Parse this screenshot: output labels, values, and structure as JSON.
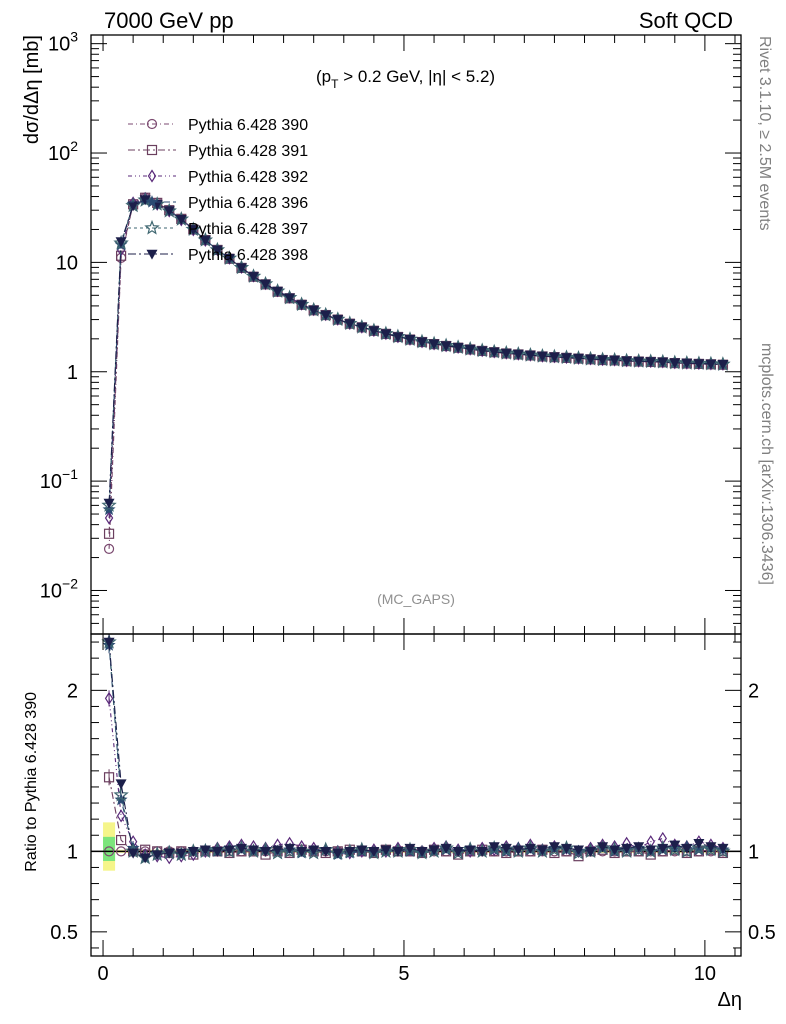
{
  "header": {
    "left_title": "7000 GeV pp",
    "right_title": "Soft QCD"
  },
  "side_labels": {
    "rivet": "Rivet 3.1.10, ≥ 2.5M events",
    "source": "mcplots.cern.ch [arXiv:1306.3436]"
  },
  "chart_data": [
    {
      "type": "line",
      "panel": "main",
      "annotation": "(p_T > 0.2 GeV, |η| < 5.2)",
      "annotation_parts": {
        "open": "(p",
        "sub": "T",
        "rest": " > 0.2 GeV, |η| < 5.2)"
      },
      "watermark": "(MC_GAPS)",
      "ylabel": "dσ/dΔη [mb]",
      "yscale": "log",
      "ylim": [
        0.004,
        1200
      ],
      "xlim": [
        -0.2,
        10.6
      ],
      "y_tick_labels": [
        {
          "value": 1000,
          "base": "10",
          "exp": "3"
        },
        {
          "value": 100,
          "base": "10",
          "exp": "2"
        },
        {
          "value": 10,
          "base": "10",
          "exp": ""
        },
        {
          "value": 1,
          "base": "1",
          "exp": ""
        },
        {
          "value": 0.1,
          "base": "10",
          "exp": "−1"
        },
        {
          "value": 0.01,
          "base": "10",
          "exp": "−2"
        }
      ],
      "legend_position": "top-left",
      "x": [
        0.1,
        0.3,
        0.5,
        0.7,
        0.9,
        1.1,
        1.3,
        1.5,
        1.7,
        1.9,
        2.1,
        2.3,
        2.5,
        2.7,
        2.9,
        3.1,
        3.3,
        3.5,
        3.7,
        3.9,
        4.1,
        4.3,
        4.5,
        4.7,
        4.9,
        5.1,
        5.3,
        5.5,
        5.7,
        5.9,
        6.1,
        6.3,
        6.5,
        6.7,
        6.9,
        7.1,
        7.3,
        7.5,
        7.7,
        7.9,
        8.1,
        8.3,
        8.5,
        8.7,
        8.9,
        9.1,
        9.3,
        9.5,
        9.7,
        9.9,
        10.1,
        10.3
      ],
      "series": [
        {
          "name": "Pythia 6.428 390",
          "marker": "circle",
          "color": "#7b4a70",
          "values": [
            0.024,
            11,
            34,
            39,
            35,
            30,
            25,
            20,
            16,
            13,
            10.8,
            8.9,
            7.4,
            6.3,
            5.4,
            4.7,
            4.1,
            3.65,
            3.3,
            3.0,
            2.75,
            2.55,
            2.37,
            2.22,
            2.08,
            1.97,
            1.87,
            1.79,
            1.72,
            1.66,
            1.6,
            1.55,
            1.51,
            1.47,
            1.44,
            1.41,
            1.38,
            1.36,
            1.34,
            1.32,
            1.3,
            1.28,
            1.27,
            1.25,
            1.24,
            1.23,
            1.22,
            1.2,
            1.19,
            1.18,
            1.17,
            1.16
          ]
        },
        {
          "name": "Pythia 6.428 391",
          "marker": "square",
          "color": "#6b3f5f",
          "values": [
            0.033,
            11.5,
            34,
            39,
            35,
            30,
            25,
            20,
            16,
            13,
            10.8,
            8.9,
            7.4,
            6.3,
            5.4,
            4.7,
            4.1,
            3.65,
            3.3,
            3.0,
            2.75,
            2.55,
            2.37,
            2.22,
            2.08,
            1.97,
            1.87,
            1.79,
            1.72,
            1.66,
            1.6,
            1.55,
            1.51,
            1.47,
            1.44,
            1.41,
            1.38,
            1.36,
            1.34,
            1.32,
            1.3,
            1.28,
            1.27,
            1.25,
            1.24,
            1.23,
            1.22,
            1.2,
            1.19,
            1.18,
            1.17,
            1.16
          ]
        },
        {
          "name": "Pythia 6.428 392",
          "marker": "diamond",
          "color": "#5a2a7a",
          "values": [
            0.046,
            13,
            35,
            38.5,
            34,
            29.5,
            24.5,
            19.8,
            15.9,
            13.1,
            10.9,
            9.0,
            7.5,
            6.4,
            5.5,
            4.8,
            4.15,
            3.7,
            3.33,
            3.02,
            2.76,
            2.56,
            2.38,
            2.23,
            2.09,
            1.98,
            1.88,
            1.8,
            1.73,
            1.67,
            1.61,
            1.56,
            1.52,
            1.48,
            1.45,
            1.42,
            1.39,
            1.37,
            1.35,
            1.33,
            1.31,
            1.29,
            1.28,
            1.26,
            1.25,
            1.24,
            1.23,
            1.21,
            1.2,
            1.19,
            1.18,
            1.17
          ]
        },
        {
          "name": "Pythia 6.428 396",
          "marker": "star",
          "color": "#2a4a72",
          "values": [
            0.055,
            14.5,
            34,
            37.5,
            34,
            29.5,
            24.8,
            20,
            16,
            13,
            10.9,
            8.95,
            7.45,
            6.35,
            5.45,
            4.75,
            4.12,
            3.67,
            3.31,
            3.01,
            2.76,
            2.56,
            2.38,
            2.23,
            2.09,
            1.98,
            1.88,
            1.8,
            1.73,
            1.67,
            1.61,
            1.56,
            1.52,
            1.48,
            1.45,
            1.42,
            1.39,
            1.37,
            1.35,
            1.33,
            1.31,
            1.29,
            1.28,
            1.26,
            1.25,
            1.24,
            1.23,
            1.21,
            1.2,
            1.19,
            1.18,
            1.17
          ]
        },
        {
          "name": "Pythia 6.428 397",
          "marker": "star-open",
          "color": "#3e6670",
          "values": [
            0.06,
            15,
            33,
            37,
            34,
            29.5,
            24.8,
            20,
            16,
            13,
            10.9,
            8.95,
            7.45,
            6.35,
            5.45,
            4.75,
            4.12,
            3.67,
            3.31,
            3.01,
            2.76,
            2.56,
            2.38,
            2.23,
            2.09,
            1.98,
            1.88,
            1.8,
            1.73,
            1.67,
            1.61,
            1.56,
            1.52,
            1.48,
            1.45,
            1.42,
            1.39,
            1.37,
            1.35,
            1.33,
            1.31,
            1.29,
            1.28,
            1.26,
            1.25,
            1.24,
            1.23,
            1.21,
            1.2,
            1.19,
            1.18,
            1.17
          ]
        },
        {
          "name": "Pythia 6.428 398",
          "marker": "triangle-down",
          "color": "#1c1f4a",
          "values": [
            0.063,
            15.5,
            33,
            37.5,
            34,
            29.8,
            24.8,
            20,
            16,
            13,
            10.9,
            8.95,
            7.45,
            6.35,
            5.45,
            4.75,
            4.12,
            3.67,
            3.31,
            3.01,
            2.76,
            2.56,
            2.38,
            2.23,
            2.09,
            1.98,
            1.88,
            1.8,
            1.73,
            1.67,
            1.61,
            1.56,
            1.52,
            1.48,
            1.45,
            1.42,
            1.39,
            1.37,
            1.35,
            1.33,
            1.31,
            1.29,
            1.28,
            1.26,
            1.25,
            1.24,
            1.23,
            1.21,
            1.2,
            1.19,
            1.18,
            1.17
          ]
        }
      ]
    },
    {
      "type": "line",
      "panel": "ratio",
      "ylabel": "Ratio to Pythia 6.428 390",
      "xlabel": "Δη",
      "ylim": [
        0.35,
        2.35
      ],
      "xlim": [
        -0.2,
        10.6
      ],
      "x_tick_labels": [
        {
          "value": 0,
          "label": "0"
        },
        {
          "value": 5,
          "label": "5"
        },
        {
          "value": 10,
          "label": "10"
        }
      ],
      "y_tick_labels": [
        {
          "value": 0.5,
          "label": "0.5"
        },
        {
          "value": 1,
          "label": "1"
        },
        {
          "value": 2,
          "label": "2"
        }
      ],
      "x": [
        0.1,
        0.3,
        0.5,
        0.7,
        0.9,
        1.1,
        1.3,
        1.5,
        1.7,
        1.9,
        2.1,
        2.3,
        2.5,
        2.7,
        2.9,
        3.1,
        3.3,
        3.5,
        3.7,
        3.9,
        4.1,
        4.3,
        4.5,
        4.7,
        4.9,
        5.1,
        5.3,
        5.5,
        5.7,
        5.9,
        6.1,
        6.3,
        6.5,
        6.7,
        6.9,
        7.1,
        7.3,
        7.5,
        7.7,
        7.9,
        8.1,
        8.3,
        8.5,
        8.7,
        8.9,
        9.1,
        9.3,
        9.5,
        9.7,
        9.9,
        10.1,
        10.3
      ],
      "uncertainty_bands": [
        {
          "x": 0.1,
          "outer": [
            0.88,
            1.18
          ],
          "inner": [
            0.94,
            1.09
          ]
        }
      ],
      "series": [
        {
          "name": "Pythia 6.428 391",
          "marker": "square",
          "color": "#6b3f5f",
          "values": [
            1.46,
            1.07,
            1.0,
            1.01,
            1.0,
            0.99,
            1.0,
            0.98,
            1.0,
            1.0,
            0.99,
            1.0,
            1.0,
            0.98,
            1.0,
            0.99,
            1.01,
            1.0,
            0.99,
            1.0,
            1.01,
            1.0,
            0.99,
            1.01,
            1.0,
            1.0,
            0.99,
            1.01,
            1.0,
            0.98,
            1.0,
            1.01,
            1.0,
            0.99,
            1.0,
            1.0,
            1.01,
            0.99,
            1.0,
            0.97,
            1.0,
            1.01,
            0.99,
            1.0,
            1.0,
            0.98,
            1.0,
            1.01,
            0.99,
            1.0,
            1.01,
            0.99
          ]
        },
        {
          "name": "Pythia 6.428 392",
          "marker": "diamond",
          "color": "#5a2a7a",
          "values": [
            1.95,
            1.22,
            1.06,
            0.98,
            0.97,
            0.96,
            0.97,
            0.98,
            1.0,
            1.02,
            1.03,
            1.04,
            1.03,
            1.02,
            1.04,
            1.05,
            1.03,
            1.02,
            1.01,
            1.0,
            0.99,
            1.0,
            1.01,
            1.0,
            1.02,
            1.01,
            1.0,
            1.02,
            1.03,
            1.01,
            1.0,
            1.02,
            1.01,
            1.03,
            1.02,
            1.04,
            1.01,
            1.03,
            1.02,
            1.0,
            1.02,
            1.04,
            1.03,
            1.05,
            1.02,
            1.06,
            1.08,
            1.04,
            1.03,
            1.06,
            1.04,
            1.02
          ]
        },
        {
          "name": "Pythia 6.428 396",
          "marker": "star",
          "color": "#2a4a72",
          "values": [
            2.28,
            1.32,
            1.02,
            0.96,
            0.99,
            1.0,
            0.98,
            1.0,
            1.01,
            1.0,
            1.02,
            1.01,
            1.0,
            1.01,
            1.0,
            1.01,
            0.99,
            1.0,
            1.01,
            0.98,
            0.99,
            1.0,
            0.99,
            1.0,
            1.01,
            1.0,
            0.99,
            1.0,
            1.01,
            1.0,
            1.02,
            1.0,
            1.01,
            1.0,
            1.02,
            1.01,
            1.0,
            1.02,
            1.01,
            1.0,
            1.01,
            1.02,
            1.0,
            1.01,
            1.02,
            1.0,
            1.01,
            1.02,
            1.03,
            1.01,
            1.02,
            1.01
          ]
        },
        {
          "name": "Pythia 6.428 397",
          "marker": "star-open",
          "color": "#3e6670",
          "values": [
            2.3,
            1.35,
            1.0,
            0.96,
            0.98,
            0.99,
            0.98,
            1.0,
            1.0,
            1.01,
            1.0,
            1.02,
            1.0,
            1.01,
            0.99,
            1.0,
            1.0,
            0.99,
            1.01,
            0.99,
            1.0,
            1.01,
            0.99,
            1.0,
            1.0,
            1.01,
            0.99,
            1.0,
            1.02,
            0.99,
            1.01,
            1.0,
            1.02,
            1.01,
            1.0,
            1.02,
            1.0,
            1.01,
            1.02,
            0.99,
            1.0,
            1.02,
            1.01,
            1.0,
            1.01,
            1.0,
            1.02,
            1.01,
            1.0,
            1.02,
            1.01,
            1.0
          ]
        },
        {
          "name": "Pythia 6.428 398",
          "marker": "triangle-down",
          "color": "#1c1f4a",
          "values": [
            2.3,
            1.42,
            0.99,
            0.96,
            0.98,
            0.99,
            0.99,
            1.0,
            1.01,
            1.0,
            1.01,
            1.02,
            1.01,
            1.0,
            1.01,
            1.02,
            1.0,
            1.01,
            1.0,
            0.99,
            1.0,
            1.01,
            1.0,
            1.01,
            1.0,
            1.02,
            1.0,
            1.01,
            1.02,
            1.0,
            1.01,
            1.0,
            1.03,
            1.02,
            1.01,
            1.02,
            1.01,
            1.03,
            1.02,
            1.01,
            1.0,
            1.03,
            1.01,
            1.02,
            1.03,
            1.01,
            1.02,
            1.04,
            1.02,
            1.05,
            1.03,
            1.02
          ]
        }
      ]
    }
  ]
}
